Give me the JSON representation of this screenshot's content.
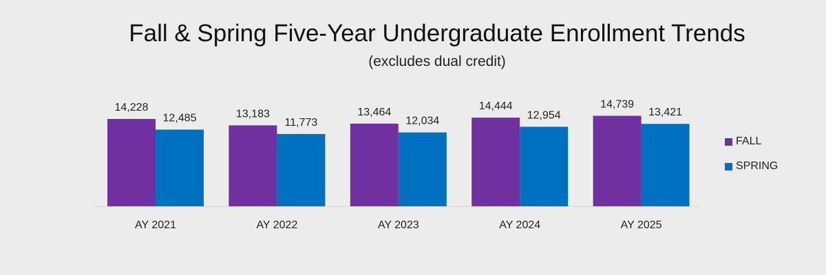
{
  "chart_data": {
    "type": "bar",
    "title": "Fall & Spring Five-Year Undergraduate Enrollment Trends",
    "subtitle": "(excludes dual credit)",
    "categories": [
      "AY 2021",
      "AY 2022",
      "AY 2023",
      "AY 2024",
      "AY 2025"
    ],
    "series": [
      {
        "name": "FALL",
        "color": "#7030a0",
        "values": [
          14228,
          13183,
          13464,
          14444,
          14739
        ],
        "labels": [
          "14,228",
          "13,183",
          "13,464",
          "14,444",
          "14,739"
        ]
      },
      {
        "name": "SPRING",
        "color": "#0070c0",
        "values": [
          12485,
          11773,
          12034,
          12954,
          13421
        ],
        "labels": [
          "12,485",
          "11,773",
          "12,034",
          "12,954",
          "13,421"
        ]
      }
    ],
    "ylim": [
      0,
      20000
    ],
    "grid": false,
    "legend_position": "right"
  }
}
